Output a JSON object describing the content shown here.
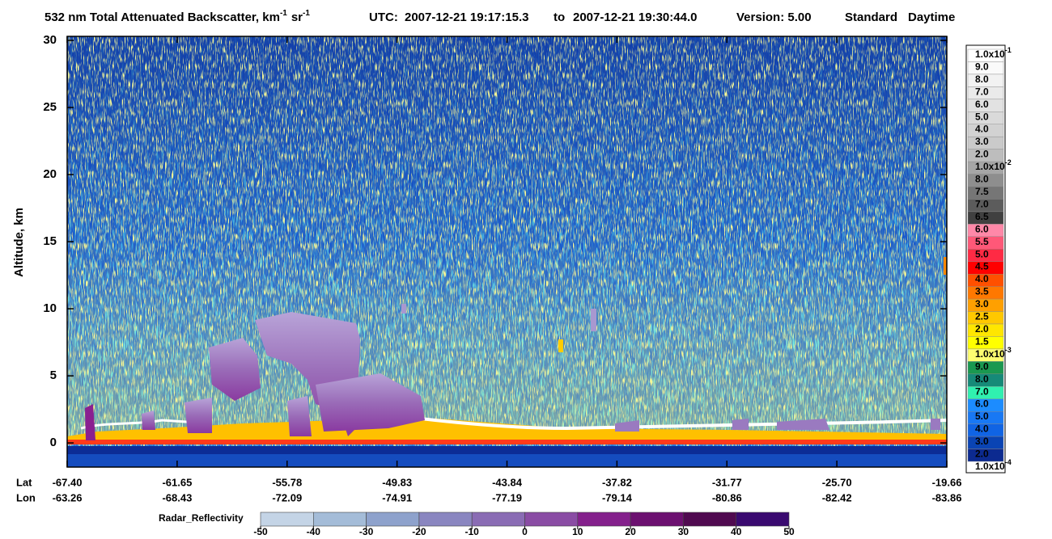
{
  "chart_data": {
    "type": "curtain",
    "title_runs": [
      "532 nm Total Attenuated Backscatter, km",
      "-1",
      "sr",
      "-1"
    ],
    "utc_label": "UTC:",
    "start_time": "2007-12-21 19:17:15.3",
    "to": "to",
    "end_time": "2007-12-21 19:30:44.0",
    "version": "Version: 5.00",
    "product": "Standard",
    "daytime": "Daytime",
    "ylabel": "Altitude, km",
    "ylim": [
      -1.8,
      30.3
    ],
    "yticks": [
      0,
      5,
      10,
      15,
      20,
      25,
      30
    ],
    "x_row_labels": [
      "Lat",
      "Lon"
    ],
    "lat": [
      "-67.40",
      "-61.65",
      "-55.78",
      "-49.83",
      "-43.84",
      "-37.82",
      "-31.77",
      "-25.70",
      "-19.66"
    ],
    "lon": [
      "-63.26",
      "-68.43",
      "-72.09",
      "-74.91",
      "-77.19",
      "-79.14",
      "-80.86",
      "-82.42",
      "-83.86"
    ],
    "colorbar": {
      "labels": [
        {
          "text": "1.0x10",
          "exp": "-1"
        },
        {
          "text": "9.0"
        },
        {
          "text": "8.0"
        },
        {
          "text": "7.0"
        },
        {
          "text": "6.0"
        },
        {
          "text": "5.0"
        },
        {
          "text": "4.0"
        },
        {
          "text": "3.0"
        },
        {
          "text": "2.0"
        },
        {
          "text": "1.0x10",
          "exp": "-2"
        },
        {
          "text": "8.0"
        },
        {
          "text": "7.5"
        },
        {
          "text": "7.0"
        },
        {
          "text": "6.5"
        },
        {
          "text": "6.0"
        },
        {
          "text": "5.5"
        },
        {
          "text": "5.0"
        },
        {
          "text": "4.5"
        },
        {
          "text": "4.0"
        },
        {
          "text": "3.5"
        },
        {
          "text": "3.0"
        },
        {
          "text": "2.5"
        },
        {
          "text": "2.0"
        },
        {
          "text": "1.5"
        },
        {
          "text": "1.0x10",
          "exp": "-3"
        },
        {
          "text": "9.0"
        },
        {
          "text": "8.0"
        },
        {
          "text": "7.0"
        },
        {
          "text": "6.0"
        },
        {
          "text": "5.0"
        },
        {
          "text": "4.0"
        },
        {
          "text": "3.0"
        },
        {
          "text": "2.0"
        },
        {
          "text": "1.0x10",
          "exp": "-4"
        }
      ],
      "colors": [
        "#ffffff",
        "#fafafa",
        "#f2f2f2",
        "#eaeaea",
        "#e2e2e2",
        "#dadada",
        "#d2d2d2",
        "#cacaca",
        "#bdbdbd",
        "#a6a6a6",
        "#8e8e8e",
        "#767676",
        "#5c5c5c",
        "#404040",
        "#ff88a8",
        "#ff5878",
        "#ff2a44",
        "#ff0000",
        "#ff5000",
        "#ff7800",
        "#ffa000",
        "#ffc800",
        "#ffe600",
        "#ffff00",
        "#ffff70",
        "#1a9850",
        "#168a78",
        "#30f0b0",
        "#1c8cff",
        "#1878f4",
        "#1064e4",
        "#0a44b4",
        "#0c2a90"
      ]
    },
    "radar": {
      "label": "Radar_Reflectivity",
      "lim": [
        -50,
        50
      ],
      "ticks": [
        -50,
        -40,
        -30,
        -20,
        -10,
        0,
        10,
        20,
        30,
        40,
        50
      ],
      "colors": [
        "#c4d4e6",
        "#a4bcd8",
        "#8ea2cc",
        "#8a86c0",
        "#8a6cb4",
        "#8a4ca4",
        "#84208c",
        "#6c1070",
        "#500a50",
        "#3a0a70"
      ]
    }
  }
}
